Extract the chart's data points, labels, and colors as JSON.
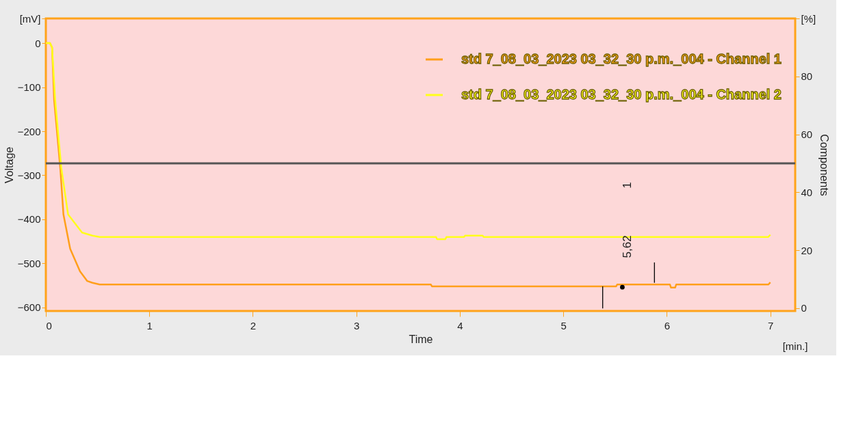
{
  "chart_data": {
    "type": "line",
    "xlabel": "Time",
    "ylabel": "Voltage",
    "y2label": "Components",
    "xlim": [
      0,
      7.24
    ],
    "ylim": [
      -608,
      56
    ],
    "y2lim": [
      -1,
      100
    ],
    "xticks": [
      0,
      1,
      2,
      3,
      4,
      5,
      6,
      7
    ],
    "yticks": [
      0,
      -100,
      -200,
      -300,
      -400,
      -500,
      -600,
      {
        "value": 56,
        "label": "[mV]"
      }
    ],
    "y2ticks": [
      0,
      20,
      40,
      60,
      80,
      {
        "value": 100,
        "label": "[%]"
      }
    ],
    "legend": "top right",
    "line_style": "solid",
    "marker": "none",
    "series": [
      {
        "name": "std 7_08_03_2023 03_32_30 p.m._004 -  Channel 1",
        "color": "#ff9f1a",
        "x": [
          0,
          0.04,
          0.06,
          0.08,
          0.14,
          0.17,
          0.235,
          0.33,
          0.4,
          0.45,
          0.52,
          3.72,
          3.73,
          5.51,
          5.52,
          6.03,
          6.04,
          6.08,
          6.09,
          6.98,
          7.0
        ],
        "values": [
          0,
          0,
          -10,
          -129,
          -285,
          -389,
          -467,
          -518,
          -540,
          -544,
          -548,
          -548,
          -552,
          -552,
          -548,
          -548,
          -555,
          -555,
          -548,
          -548,
          -543
        ]
      },
      {
        "name": "std 7_08_03_2023 03_32_30 p.m._004 -  Channel 2",
        "color": "#ffff1a",
        "x": [
          0,
          0.04,
          0.06,
          0.09,
          0.15,
          0.215,
          0.35,
          0.45,
          0.52,
          3.77,
          3.78,
          3.86,
          3.87,
          4.04,
          4.05,
          4.22,
          4.23,
          6.98,
          7.0
        ],
        "values": [
          0,
          0,
          -10,
          -129,
          -285,
          -389,
          -430,
          -437,
          -440,
          -440,
          -445,
          -445,
          -440,
          -440,
          -437,
          -437,
          -440,
          -440,
          -435
        ]
      },
      {
        "color": "#000000",
        "x": [
          5.38,
          5.38
        ],
        "values": [
          -552,
          -602
        ]
      },
      {
        "color": "#000000",
        "x": [
          5.88,
          5.88
        ],
        "values": [
          -498,
          -544
        ]
      },
      {
        "type": "scatter",
        "color": "#000000",
        "x": [
          5.57
        ],
        "values": [
          -554
        ]
      }
    ],
    "ref_lines": [
      {
        "axis": "y2",
        "value": 50,
        "color": "#555555"
      }
    ],
    "annotations": [
      "5,62",
      "1",
      "[min.]"
    ]
  }
}
